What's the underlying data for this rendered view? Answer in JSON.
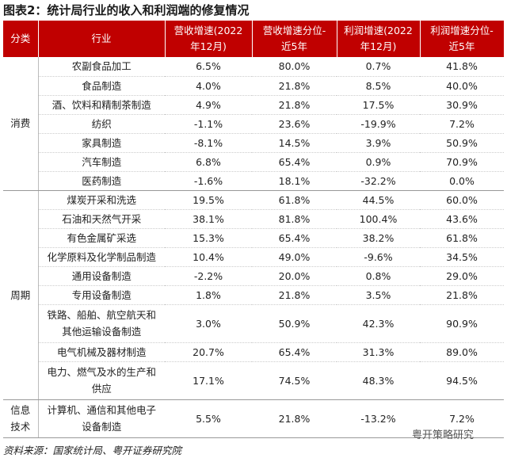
{
  "title": "图表2：统计局行业的收入和利润端的修复情况",
  "table": {
    "header": [
      [
        "分类"
      ],
      [
        "行业"
      ],
      [
        "营收增速(2022",
        "年12月)"
      ],
      [
        "营收增速分位-",
        "近5年"
      ],
      [
        "利润增速(2022",
        "年12月)"
      ],
      [
        "利润增速分位-",
        "近5年"
      ]
    ],
    "groups": [
      {
        "name": [
          "消费"
        ],
        "rows": [
          [
            [
              "农副食品加工"
            ],
            "6.5%",
            "80.0%",
            "0.7%",
            "41.8%"
          ],
          [
            [
              "食品制造"
            ],
            "4.0%",
            "21.8%",
            "8.5%",
            "40.0%"
          ],
          [
            [
              "酒、饮料和精制茶制造"
            ],
            "4.9%",
            "21.8%",
            "17.5%",
            "30.9%"
          ],
          [
            [
              "纺织"
            ],
            "-1.1%",
            "23.6%",
            "-19.9%",
            "7.2%"
          ],
          [
            [
              "家具制造"
            ],
            "-8.1%",
            "14.5%",
            "3.9%",
            "50.9%"
          ],
          [
            [
              "汽车制造"
            ],
            "6.8%",
            "65.4%",
            "0.9%",
            "70.9%"
          ],
          [
            [
              "医药制造"
            ],
            "-1.6%",
            "18.1%",
            "-32.2%",
            "0.0%"
          ]
        ]
      },
      {
        "name": [
          "周期"
        ],
        "rows": [
          [
            [
              "煤炭开采和洗选"
            ],
            "19.5%",
            "61.8%",
            "44.5%",
            "60.0%"
          ],
          [
            [
              "石油和天然气开采"
            ],
            "38.1%",
            "81.8%",
            "100.4%",
            "43.6%"
          ],
          [
            [
              "有色金属矿采选"
            ],
            "15.3%",
            "65.4%",
            "38.2%",
            "61.8%"
          ],
          [
            [
              "化学原料及化学制品制造"
            ],
            "10.4%",
            "49.0%",
            "-9.6%",
            "34.5%"
          ],
          [
            [
              "通用设备制造"
            ],
            "-2.2%",
            "20.0%",
            "0.8%",
            "29.0%"
          ],
          [
            [
              "专用设备制造"
            ],
            "1.8%",
            "21.8%",
            "3.5%",
            "21.8%"
          ],
          [
            [
              "铁路、船舶、航空航天和",
              "其他运输设备制造"
            ],
            "3.0%",
            "50.9%",
            "42.3%",
            "90.9%"
          ],
          [
            [
              "电气机械及器材制造"
            ],
            "20.7%",
            "65.4%",
            "31.3%",
            "89.0%"
          ],
          [
            [
              "电力、燃气及水的生产和",
              "供应"
            ],
            "17.1%",
            "74.5%",
            "48.3%",
            "94.5%"
          ]
        ]
      },
      {
        "name": [
          "信息",
          "技术"
        ],
        "rows": [
          [
            [
              "计算机、通信和其他电子",
              "设备制造"
            ],
            "5.5%",
            "21.8%",
            "-13.2%",
            "7.2%"
          ]
        ]
      }
    ]
  },
  "watermark": "粤开策略研究",
  "source": "资料来源：国家统计局、粤开证券研究院"
}
